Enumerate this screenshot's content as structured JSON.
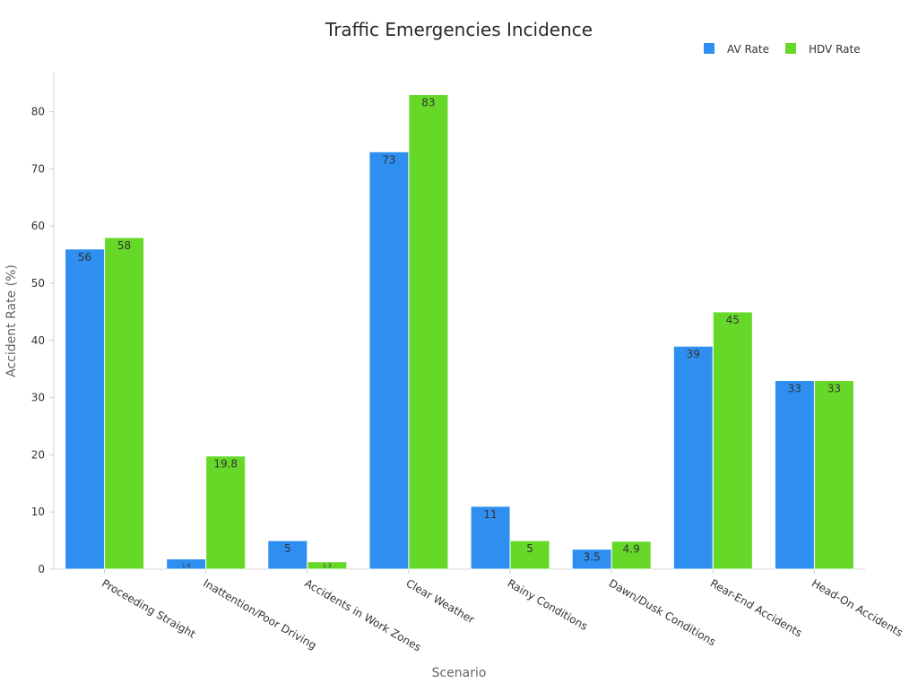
{
  "chart_data": {
    "type": "bar",
    "title": "Traffic Emergencies Incidence",
    "xlabel": "Scenario",
    "ylabel": "Accident Rate (%)",
    "ylim": [
      0,
      87
    ],
    "yticks": [
      0,
      10,
      20,
      30,
      40,
      50,
      60,
      70,
      80
    ],
    "grid": false,
    "legend_position": "top-right",
    "categories": [
      "Proceeding Straight",
      "Inattention/Poor Driving",
      "Accidents in Work Zones",
      "Clear Weather",
      "Rainy Conditions",
      "Dawn/Dusk Conditions",
      "Rear-End Accidents",
      "Head-On Accidents"
    ],
    "series": [
      {
        "name": "AV Rate",
        "color": "#2E8FF0",
        "values": [
          56,
          1.8,
          5,
          73,
          11,
          3.5,
          39,
          33
        ],
        "labels": [
          "56",
          "1.8",
          "5",
          "73",
          "11",
          "3.5",
          "39",
          "33"
        ]
      },
      {
        "name": "HDV Rate",
        "color": "#66D928",
        "values": [
          58,
          19.8,
          1.3,
          83,
          5,
          4.9,
          45,
          33
        ],
        "labels": [
          "58",
          "19.8",
          "1.3",
          "83",
          "5",
          "4.9",
          "45",
          "33"
        ]
      }
    ]
  }
}
